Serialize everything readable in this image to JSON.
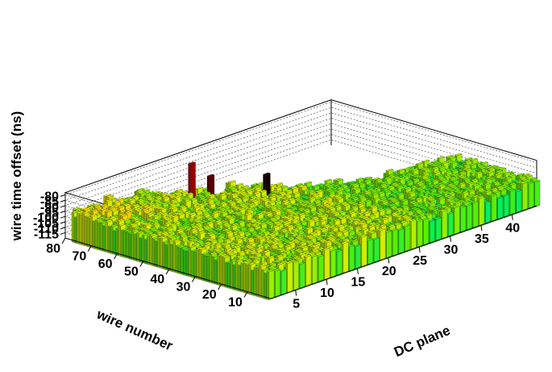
{
  "chart_data": {
    "type": "lego3d",
    "x_axis": {
      "label": "DC plane",
      "range": [
        1,
        44
      ],
      "ticks": [
        5,
        10,
        15,
        20,
        25,
        30,
        35,
        40
      ]
    },
    "y_axis": {
      "label": "wire number",
      "range": [
        1,
        80
      ],
      "ticks": [
        10,
        20,
        30,
        40,
        50,
        60,
        70,
        80
      ]
    },
    "z_axis": {
      "label": "wire time offset (ns)",
      "range": [
        -120,
        -78
      ],
      "ticks": [
        -115,
        -110,
        -105,
        -100,
        -95,
        -90,
        -85,
        -80
      ]
    },
    "grid": true,
    "baseline_ns": -95,
    "spikes": [
      {
        "plane": 17,
        "wire": 62,
        "value": -81
      },
      {
        "plane": 19,
        "wire": 74,
        "value": -82
      },
      {
        "plane": 21,
        "wire": 50,
        "value": -79
      },
      {
        "plane": 3,
        "wire": 44,
        "value": -93
      }
    ],
    "colors": {
      "low": "#c8c8ff",
      "mid_low": "#0000ff",
      "mid": "#00e0e0",
      "mid_high": "#00ff40",
      "high": "#ffff00",
      "top": "#ff8000",
      "max": "#000000"
    }
  }
}
